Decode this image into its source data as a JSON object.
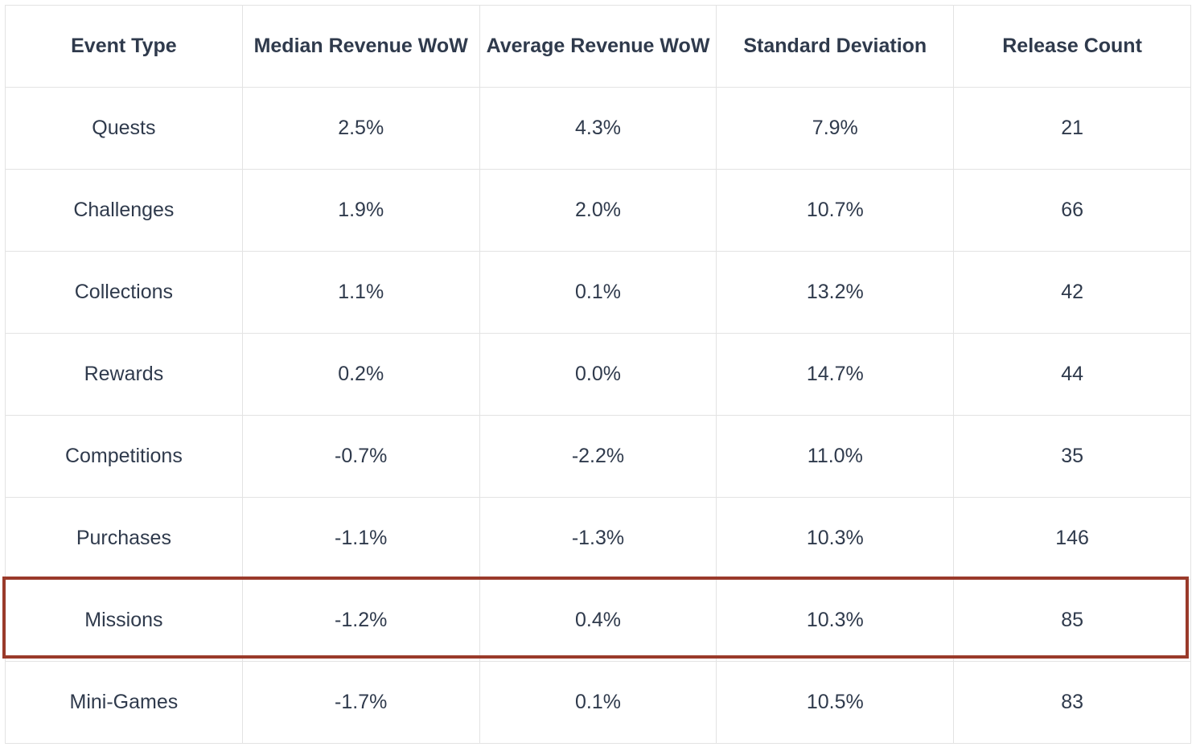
{
  "table": {
    "headers": [
      "Event Type",
      "Median Revenue WoW",
      "Average Revenue WoW",
      "Standard Deviation",
      "Release Count"
    ],
    "rows": [
      [
        "Quests",
        "2.5%",
        "4.3%",
        "7.9%",
        "21"
      ],
      [
        "Challenges",
        "1.9%",
        "2.0%",
        "10.7%",
        "66"
      ],
      [
        "Collections",
        "1.1%",
        "0.1%",
        "13.2%",
        "42"
      ],
      [
        "Rewards",
        "0.2%",
        "0.0%",
        "14.7%",
        "44"
      ],
      [
        "Competitions",
        "-0.7%",
        "-2.2%",
        "11.0%",
        "35"
      ],
      [
        "Purchases",
        "-1.1%",
        "-1.3%",
        "10.3%",
        "146"
      ],
      [
        "Missions",
        "-1.2%",
        "0.4%",
        "10.3%",
        "85"
      ],
      [
        "Mini-Games",
        "-1.7%",
        "0.1%",
        "10.5%",
        "83"
      ]
    ],
    "highlighted_row": "Missions",
    "highlight_color": "#9a3a2a"
  }
}
